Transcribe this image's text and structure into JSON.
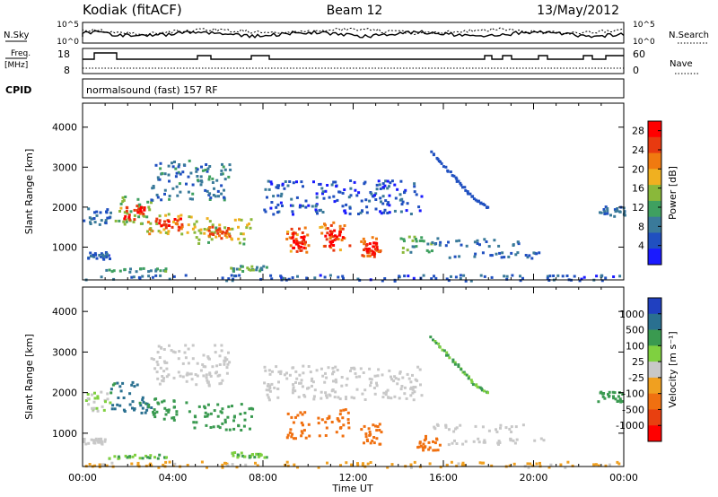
{
  "header": {
    "station": "Kodiak (fitACF)",
    "beam": "Beam 12",
    "date": "13/May/2012"
  },
  "strip_labels": {
    "nsky": "N.Sky",
    "nsky_hi": "10^5",
    "nsky_lo": "10^0",
    "nsearch": "N.Search",
    "nsearch_hi": "10^5",
    "nsearch_lo": "10^0",
    "freq_line1": "Freq.",
    "freq_line2": "[MHz]",
    "freq_hi": "18",
    "freq_lo": "8",
    "nave": "Nave",
    "nave_hi": "60",
    "nave_lo": "0",
    "cpid": "CPID",
    "cpid_text": "normalsound (fast) 157 RF"
  },
  "colors": {
    "power_scale": [
      "#1a1aff",
      "#2050c0",
      "#3a7a9a",
      "#3fa060",
      "#8ab83a",
      "#f0b020",
      "#f07a10",
      "#e83a10",
      "#ff0000"
    ],
    "velocity_scale": [
      "#2040c0",
      "#2a7090",
      "#3a9a50",
      "#7fd040",
      "#c8c8c8",
      "#f0a020",
      "#f07010",
      "#e84010",
      "#ff0000"
    ]
  },
  "chart_data": [
    {
      "type": "heatmap",
      "name": "power-panel",
      "xlabel": "Time UT",
      "ylabel": "Slant Range [km]",
      "xlim": [
        0,
        24
      ],
      "ylim": [
        180,
        4600
      ],
      "xticks": [
        "00:00",
        "04:00",
        "08:00",
        "12:00",
        "16:00",
        "20:00",
        "00:00"
      ],
      "yticks": [
        1000,
        2000,
        3000,
        4000
      ],
      "colorbar": {
        "label": "Power [dB]",
        "ticks": [
          4,
          8,
          12,
          16,
          20,
          24,
          28
        ],
        "range": [
          0,
          30
        ]
      },
      "regions": [
        {
          "t0": 0.0,
          "t1": 1.2,
          "r0": 1550,
          "r1": 2050,
          "v": 7
        },
        {
          "t0": 0.2,
          "t1": 1.2,
          "r0": 700,
          "r1": 900,
          "v": 6
        },
        {
          "t0": 1.2,
          "t1": 3.0,
          "r0": 1600,
          "r1": 2300,
          "v": 14
        },
        {
          "t0": 1.8,
          "t1": 2.7,
          "r0": 1700,
          "r1": 2100,
          "v": 26
        },
        {
          "t0": 2.8,
          "t1": 4.8,
          "r0": 1350,
          "r1": 1900,
          "v": 18
        },
        {
          "t0": 3.2,
          "t1": 4.4,
          "r0": 1450,
          "r1": 1750,
          "v": 26
        },
        {
          "t0": 3.0,
          "t1": 6.5,
          "r0": 2200,
          "r1": 3200,
          "v": 8
        },
        {
          "t0": 4.8,
          "t1": 7.5,
          "r0": 1100,
          "r1": 1750,
          "v": 16
        },
        {
          "t0": 5.5,
          "t1": 6.5,
          "r0": 1250,
          "r1": 1550,
          "v": 24
        },
        {
          "t0": 1.0,
          "t1": 3.8,
          "r0": 400,
          "r1": 500,
          "v": 11
        },
        {
          "t0": 6.5,
          "t1": 8.2,
          "r0": 420,
          "r1": 560,
          "v": 11
        },
        {
          "t0": 9.0,
          "t1": 10.0,
          "r0": 900,
          "r1": 1550,
          "v": 22
        },
        {
          "t0": 9.2,
          "t1": 9.8,
          "r0": 1000,
          "r1": 1400,
          "v": 28
        },
        {
          "t0": 10.4,
          "t1": 11.8,
          "r0": 950,
          "r1": 1650,
          "v": 22
        },
        {
          "t0": 10.7,
          "t1": 11.5,
          "r0": 1050,
          "r1": 1450,
          "v": 28
        },
        {
          "t0": 12.3,
          "t1": 13.2,
          "r0": 750,
          "r1": 1300,
          "v": 23
        },
        {
          "t0": 12.5,
          "t1": 13.0,
          "r0": 850,
          "r1": 1150,
          "v": 28
        },
        {
          "t0": 14.0,
          "t1": 15.5,
          "r0": 900,
          "r1": 1300,
          "v": 12
        },
        {
          "t0": 15.5,
          "t1": 19.5,
          "r0": 1050,
          "r1": 1250,
          "v": 7
        },
        {
          "t0": 16.0,
          "t1": 20.5,
          "r0": 750,
          "r1": 900,
          "v": 6
        },
        {
          "t0": 8.0,
          "t1": 15.0,
          "r0": 1850,
          "r1": 2700,
          "v": 5
        },
        {
          "t0": 22.8,
          "t1": 24.0,
          "r0": 1800,
          "r1": 2050,
          "v": 7
        },
        {
          "t0": 0.0,
          "t1": 24.0,
          "r0": 180,
          "r1": 330,
          "v": 6
        }
      ],
      "arcs": [
        {
          "points": [
            [
              15.4,
              3400
            ],
            [
              16.4,
              2800
            ],
            [
              17.2,
              2300
            ],
            [
              18.0,
              2000
            ]
          ],
          "v": 5
        }
      ]
    },
    {
      "type": "heatmap",
      "name": "velocity-panel",
      "xlabel": "Time UT",
      "ylabel": "Slant Range [km]",
      "xlim": [
        0,
        24
      ],
      "ylim": [
        180,
        4600
      ],
      "xticks": [
        "00:00",
        "04:00",
        "08:00",
        "12:00",
        "16:00",
        "20:00",
        "00:00"
      ],
      "yticks": [
        1000,
        2000,
        3000,
        4000
      ],
      "colorbar": {
        "label": "Velocity [m s⁻¹]",
        "ticks": [
          "1000",
          "500",
          "100",
          "25",
          "-25",
          "-100",
          "-500",
          "-1000"
        ]
      },
      "regions": [
        {
          "t0": 0.0,
          "t1": 1.2,
          "r0": 1550,
          "r1": 2050,
          "v": 25
        },
        {
          "t0": 0.0,
          "t1": 1.0,
          "r0": 750,
          "r1": 900,
          "v": 0
        },
        {
          "t0": 1.2,
          "t1": 3.0,
          "r0": 1500,
          "r1": 2300,
          "v": 600
        },
        {
          "t0": 2.8,
          "t1": 4.8,
          "r0": 1350,
          "r1": 1900,
          "v": 300
        },
        {
          "t0": 3.0,
          "t1": 6.5,
          "r0": 2200,
          "r1": 3200,
          "v": 0
        },
        {
          "t0": 4.8,
          "t1": 7.5,
          "r0": 1100,
          "r1": 1750,
          "v": 250
        },
        {
          "t0": 1.0,
          "t1": 3.8,
          "r0": 400,
          "r1": 500,
          "v": 100
        },
        {
          "t0": 6.5,
          "t1": 8.2,
          "r0": 420,
          "r1": 560,
          "v": 100
        },
        {
          "t0": 9.0,
          "t1": 10.0,
          "r0": 900,
          "r1": 1550,
          "v": -300
        },
        {
          "t0": 10.4,
          "t1": 11.8,
          "r0": 950,
          "r1": 1650,
          "v": -300
        },
        {
          "t0": 12.3,
          "t1": 13.2,
          "r0": 750,
          "r1": 1300,
          "v": -300
        },
        {
          "t0": 14.8,
          "t1": 15.8,
          "r0": 600,
          "r1": 1000,
          "v": -300
        },
        {
          "t0": 15.5,
          "t1": 19.5,
          "r0": 1050,
          "r1": 1250,
          "v": 0
        },
        {
          "t0": 16.0,
          "t1": 20.5,
          "r0": 750,
          "r1": 900,
          "v": 0
        },
        {
          "t0": 8.0,
          "t1": 15.0,
          "r0": 1850,
          "r1": 2700,
          "v": 0
        },
        {
          "t0": 22.8,
          "t1": 24.0,
          "r0": 1800,
          "r1": 2050,
          "v": 300
        },
        {
          "t0": 0.0,
          "t1": 24.0,
          "r0": 180,
          "r1": 330,
          "v": -40
        }
      ],
      "arcs": [
        {
          "points": [
            [
              15.4,
              3400
            ],
            [
              16.4,
              2800
            ],
            [
              17.2,
              2300
            ],
            [
              18.0,
              2000
            ]
          ],
          "v": 100
        }
      ]
    }
  ]
}
